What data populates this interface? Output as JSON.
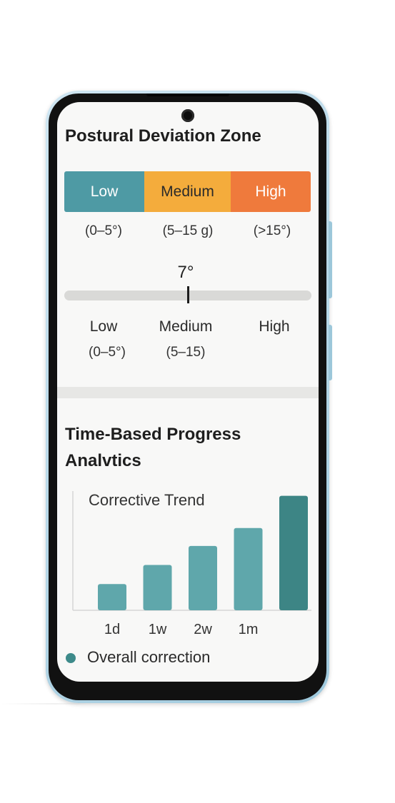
{
  "deviation": {
    "title": "Postural Deviation Zone",
    "zones": [
      {
        "label": "Low",
        "range": "(0–5°)",
        "color": "#4e9aa4",
        "text_color": "#ffffff"
      },
      {
        "label": "Medium",
        "range": "(5–15 g)",
        "color": "#f4ac3c",
        "text_color": "#2a2a2a"
      },
      {
        "label": "High",
        "range": "(>15°)",
        "color": "#ef7a3c",
        "text_color": "#ffffff"
      }
    ],
    "current_value": "7°",
    "current_fraction": 0.5,
    "levels": [
      {
        "label": "Low",
        "range": "(0–5°)"
      },
      {
        "label": "Medium",
        "range": "(5–15)"
      },
      {
        "label": "High",
        "range": ""
      }
    ]
  },
  "progress": {
    "title_line1": "Time-Based Progress",
    "title_line2": "Analvtics",
    "legend_label": "Overall correction",
    "legend_color": "#3d8a8a"
  },
  "chart_data": {
    "type": "bar",
    "title": "Corrective Trend",
    "categories": [
      "1d",
      "1w",
      "2w",
      "1m",
      ""
    ],
    "values": [
      1.1,
      1.9,
      2.7,
      3.45,
      4.8
    ],
    "ylim": [
      0,
      5
    ],
    "grid": false,
    "legend": "bottom-left",
    "series": [
      {
        "name": "Overall correction",
        "values": [
          1.1,
          1.9,
          2.7,
          3.45,
          4.8
        ]
      }
    ],
    "colors": [
      "#5fa7ab",
      "#5fa7ab",
      "#5fa7ab",
      "#5fa7ab",
      "#3d8585"
    ]
  }
}
